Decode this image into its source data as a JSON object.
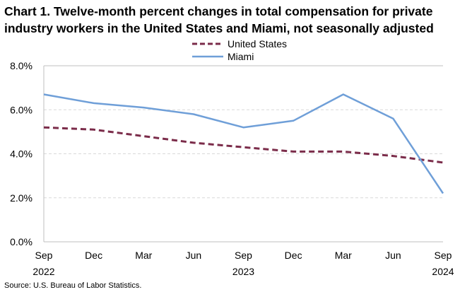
{
  "chart_data": {
    "type": "line",
    "title_lines": [
      "Chart 1. Twelve-month percent changes in total compensation for private",
      "industry workers in the United States and Miami, not seasonally adjusted"
    ],
    "categories": [
      {
        "month": "Sep",
        "year": "2022"
      },
      {
        "month": "Dec",
        "year": ""
      },
      {
        "month": "Mar",
        "year": ""
      },
      {
        "month": "Jun",
        "year": ""
      },
      {
        "month": "Sep",
        "year": "2023"
      },
      {
        "month": "Dec",
        "year": ""
      },
      {
        "month": "Mar",
        "year": ""
      },
      {
        "month": "Jun",
        "year": ""
      },
      {
        "month": "Sep",
        "year": "2024"
      }
    ],
    "series": [
      {
        "name": "United States",
        "color": "#7b2c4a",
        "style": "dashed",
        "values": [
          5.2,
          5.1,
          4.8,
          4.5,
          4.3,
          4.1,
          4.1,
          3.9,
          3.6
        ]
      },
      {
        "name": "Miami",
        "color": "#6f9fd8",
        "style": "solid",
        "values": [
          6.7,
          6.3,
          6.1,
          5.8,
          5.2,
          5.5,
          6.7,
          5.6,
          2.2
        ]
      }
    ],
    "ylim": [
      0,
      8
    ],
    "yticks": [
      "0.0%",
      "2.0%",
      "4.0%",
      "6.0%",
      "8.0%"
    ],
    "ytick_values": [
      0,
      2,
      4,
      6,
      8
    ],
    "xlabel": "",
    "ylabel": "",
    "grid": "horizontal dashed",
    "legend_position": "top-center",
    "source": "Source: U.S. Bureau of Labor Statistics."
  },
  "colors": {
    "axis": "#bfbfbf",
    "grid": "#d9d9d9"
  }
}
